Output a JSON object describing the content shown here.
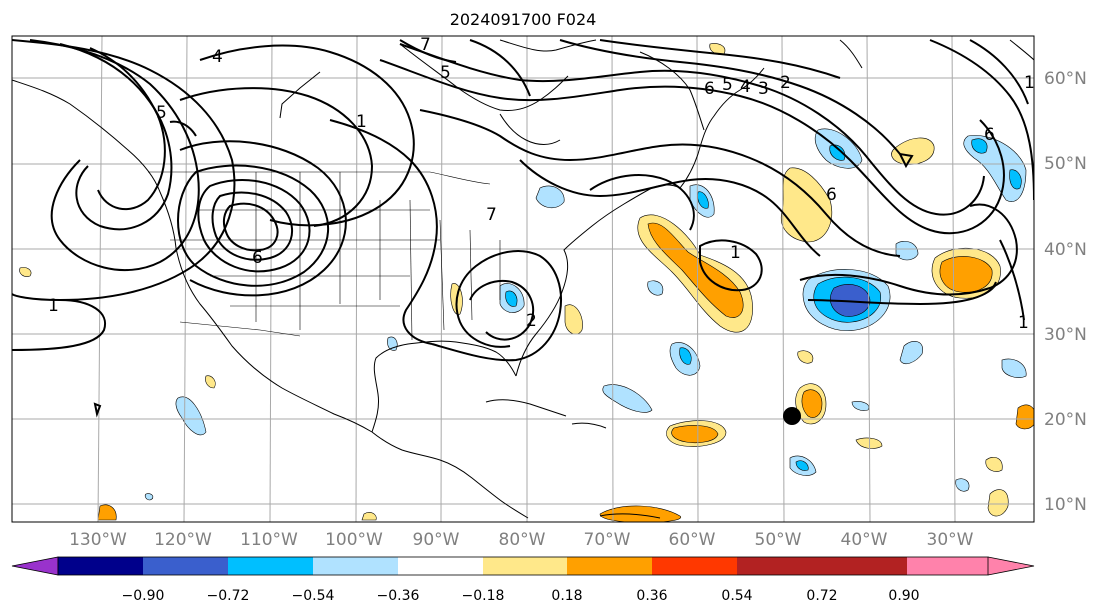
{
  "title": "2024091700 F024",
  "lon_labels": [
    "130°W",
    "120°W",
    "110°W",
    "100°W",
    "90°W",
    "80°W",
    "70°W",
    "60°W",
    "50°W",
    "40°W",
    "30°W"
  ],
  "lat_labels": [
    "60°N",
    "50°N",
    "40°N",
    "30°N",
    "20°N",
    "10°N"
  ],
  "colorbar": {
    "tick_labels": [
      "−0.90",
      "−0.72",
      "−0.54",
      "−0.36",
      "−0.18",
      "0.18",
      "0.36",
      "0.54",
      "0.72",
      "0.90"
    ],
    "colors": [
      "#9932cc",
      "#00008b",
      "#3a5fcd",
      "#00bfff",
      "#b0e2ff",
      "#ffffff",
      "#ffe88a",
      "#ffa000",
      "#ff3800",
      "#b22222",
      "#ff82ab"
    ]
  },
  "contour_labels": [
    "1",
    "4",
    "5",
    "6",
    "7",
    "5",
    "1",
    "6",
    "5",
    "4",
    "3",
    "2",
    "6",
    "7",
    "1",
    "2",
    "6",
    "1",
    "1"
  ],
  "colors": {
    "shade_light_blue": "#b0e2ff",
    "shade_blue": "#00bfff",
    "shade_dark_blue": "#3a5fcd",
    "shade_yellow": "#ffe88a",
    "shade_orange": "#ffa000",
    "grid": "#a9a9a9"
  }
}
